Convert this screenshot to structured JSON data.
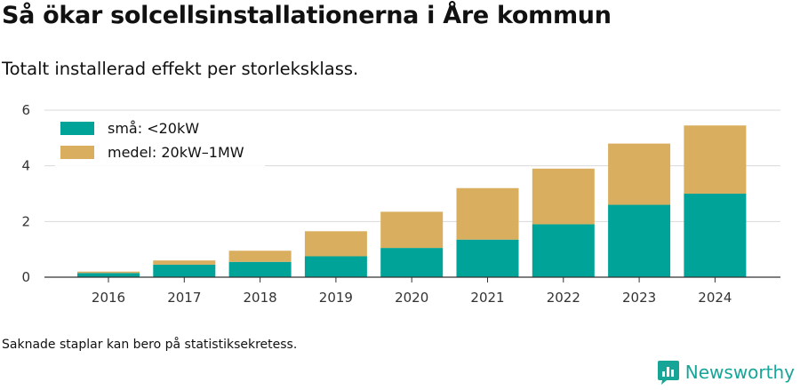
{
  "header": {
    "title": "Så ökar solcellsinstallationerna i Åre kommun",
    "subtitle": "Totalt installerad effekt per storleksklass."
  },
  "footer": {
    "note": "Saknade staplar kan bero på statistiksekretess.",
    "brand": "Newsworthy"
  },
  "colors": {
    "small": "#00a398",
    "medium": "#d9ae5f",
    "brand": "#16a596"
  },
  "chart_data": {
    "type": "bar",
    "stacked": true,
    "categories": [
      "2016",
      "2017",
      "2018",
      "2019",
      "2020",
      "2021",
      "2022",
      "2023",
      "2024"
    ],
    "series": [
      {
        "name": "små: <20kW",
        "color": "#00a398",
        "values": [
          0.15,
          0.45,
          0.55,
          0.75,
          1.05,
          1.35,
          1.9,
          2.6,
          3.0
        ]
      },
      {
        "name": "medel: 20kW–1MW",
        "color": "#d9ae5f",
        "values": [
          0.05,
          0.15,
          0.4,
          0.9,
          1.3,
          1.85,
          2.0,
          2.2,
          2.45
        ]
      }
    ],
    "ylim": [
      0,
      6
    ],
    "yticks": [
      "0",
      "2",
      "4",
      "6"
    ],
    "grid": true,
    "legend_position": "top-left"
  }
}
